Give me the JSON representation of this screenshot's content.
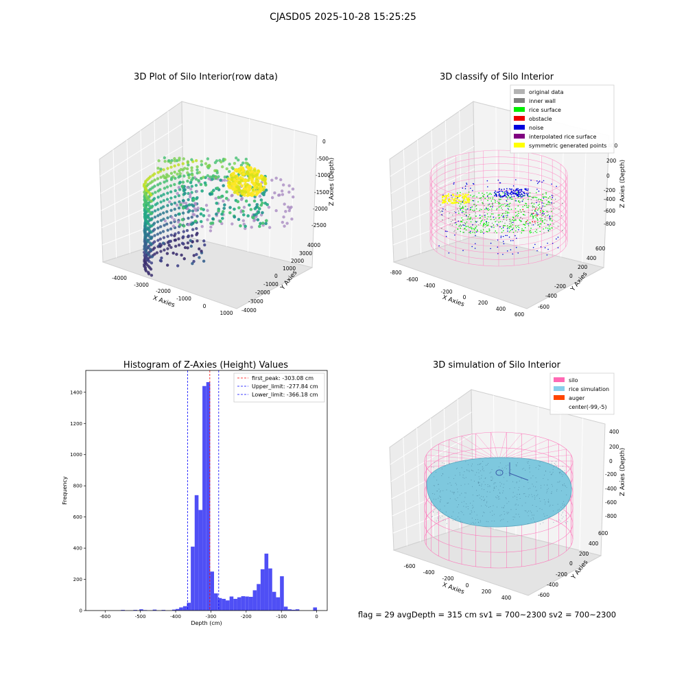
{
  "figure": {
    "suptitle": "CJASD05 2025-10-28 15:25:25",
    "footer": "flag = 29  avgDepth = 315 cm  sv1 = 700~2300  sv2 = 700~2300"
  },
  "panels": {
    "raw": {
      "title": "3D Plot of Silo Interior(row data)",
      "xlabel": "X Axies",
      "ylabel": "Y Axies",
      "zlabel": "Z Axies (Depth)",
      "xticks": [
        "-4000",
        "-3000",
        "-2000",
        "-1000",
        "0",
        "1000"
      ],
      "yticks": [
        "4000",
        "3000",
        "2000",
        "1000",
        "0",
        "-1000",
        "-2000",
        "-3000",
        "-4000"
      ],
      "zticks": [
        "0",
        "-500",
        "-1000",
        "-1500",
        "-2000",
        "-2500"
      ]
    },
    "classify": {
      "title": "3D classify of Silo Interior",
      "xlabel": "X Axies",
      "ylabel": "Y Axies",
      "zlabel": "Z Axies (Depth)",
      "xticks": [
        "-800",
        "-600",
        "-400",
        "-200",
        "0",
        "200",
        "400",
        "600"
      ],
      "yticks": [
        "600",
        "400",
        "200",
        "0",
        "-200",
        "-400",
        "-600"
      ],
      "zticks": [
        "400",
        "200",
        "0",
        "-200",
        "-400",
        "-600",
        "-800"
      ],
      "legend": [
        {
          "label": "original data",
          "color": "#b3b3b3"
        },
        {
          "label": "inner wall",
          "color": "#808080"
        },
        {
          "label": "rice surface",
          "color": "#00ee00"
        },
        {
          "label": "obstacle",
          "color": "#ee0000"
        },
        {
          "label": "noise",
          "color": "#0000dd"
        },
        {
          "label": "interpolated rice surface",
          "color": "#800080"
        },
        {
          "label": "symmetric generated points",
          "color": "#ffff00"
        }
      ]
    },
    "simulation": {
      "title": "3D simulation of Silo Interior",
      "xlabel": "X Axies",
      "ylabel": "Y Axies",
      "zlabel": "Z Axies (Depth)",
      "xticks": [
        "-600",
        "-400",
        "-200",
        "0",
        "200",
        "400"
      ],
      "yticks": [
        "600",
        "400",
        "200",
        "0",
        "-200",
        "-400",
        "-600"
      ],
      "zticks": [
        "400",
        "200",
        "0",
        "-200",
        "-400",
        "-600",
        "-800"
      ],
      "legend": [
        {
          "label": "silo",
          "color": "#ff69b4"
        },
        {
          "label": "rice simulation",
          "color": "#87ceeb"
        },
        {
          "label": "auger",
          "color": "#ff4500"
        },
        {
          "label": "center(-99,-5)",
          "color": ""
        }
      ]
    }
  },
  "chart_data": {
    "type": "bar",
    "title": "Histogram of Z-Axies (Height) Values",
    "xlabel": "Depth (cm)",
    "ylabel": "Frequency",
    "xlim": [
      -655,
      30
    ],
    "ylim": [
      0,
      1540
    ],
    "xticks": [
      -600,
      -500,
      -400,
      -300,
      -200,
      -100,
      0
    ],
    "yticks": [
      0,
      200,
      400,
      600,
      800,
      1000,
      1200,
      1400
    ],
    "bar_color": "#4f4ff5",
    "bin_width": 10.9,
    "bins": [
      {
        "x": -555,
        "count": 4
      },
      {
        "x": -520,
        "count": 4
      },
      {
        "x": -503,
        "count": 8
      },
      {
        "x": -492,
        "count": 3
      },
      {
        "x": -465,
        "count": 6
      },
      {
        "x": -440,
        "count": 4
      },
      {
        "x": -410,
        "count": 6
      },
      {
        "x": -400,
        "count": 10
      },
      {
        "x": -390,
        "count": 20
      },
      {
        "x": -379,
        "count": 28
      },
      {
        "x": -368,
        "count": 50
      },
      {
        "x": -357,
        "count": 410
      },
      {
        "x": -346,
        "count": 740
      },
      {
        "x": -335,
        "count": 645
      },
      {
        "x": -324,
        "count": 1440
      },
      {
        "x": -313,
        "count": 1465
      },
      {
        "x": -302,
        "count": 250
      },
      {
        "x": -291,
        "count": 110
      },
      {
        "x": -280,
        "count": 80
      },
      {
        "x": -269,
        "count": 75
      },
      {
        "x": -258,
        "count": 65
      },
      {
        "x": -247,
        "count": 90
      },
      {
        "x": -236,
        "count": 75
      },
      {
        "x": -225,
        "count": 85
      },
      {
        "x": -214,
        "count": 92
      },
      {
        "x": -203,
        "count": 90
      },
      {
        "x": -192,
        "count": 88
      },
      {
        "x": -181,
        "count": 130
      },
      {
        "x": -170,
        "count": 170
      },
      {
        "x": -159,
        "count": 265
      },
      {
        "x": -148,
        "count": 365
      },
      {
        "x": -137,
        "count": 270
      },
      {
        "x": -126,
        "count": 120
      },
      {
        "x": -115,
        "count": 85
      },
      {
        "x": -104,
        "count": 220
      },
      {
        "x": -93,
        "count": 25
      },
      {
        "x": -82,
        "count": 8
      },
      {
        "x": -71,
        "count": 5
      },
      {
        "x": -60,
        "count": 8
      },
      {
        "x": -10,
        "count": 20
      }
    ],
    "vlines": [
      {
        "label": "first_peak: -303.08 cm",
        "x": -303.08,
        "color": "#ff0000"
      },
      {
        "label": "Upper_limit: -277.84 cm",
        "x": -277.84,
        "color": "#0000ff"
      },
      {
        "label": "Lower_limit: -366.18 cm",
        "x": -366.18,
        "color": "#0000ff"
      }
    ]
  }
}
